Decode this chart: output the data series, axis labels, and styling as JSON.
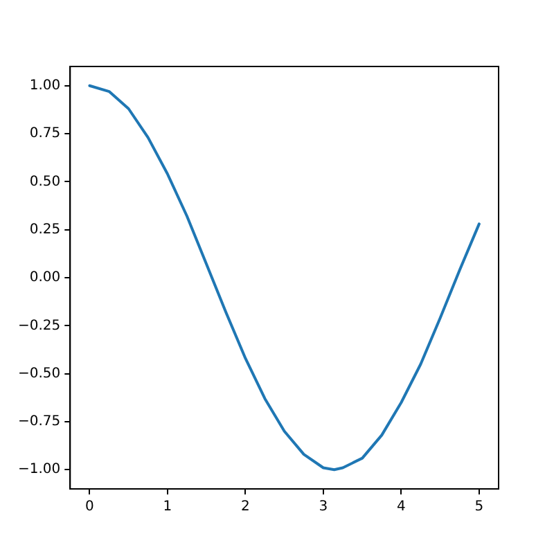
{
  "chart_data": {
    "type": "line",
    "x": [
      0,
      0.25,
      0.5,
      0.75,
      1,
      1.25,
      1.5,
      1.75,
      2,
      2.25,
      2.5,
      2.75,
      3,
      3.14,
      3.25,
      3.5,
      3.75,
      4,
      4.25,
      4.5,
      4.75,
      5
    ],
    "series": [
      {
        "color": "#1f77b4",
        "values": [
          1.0,
          0.97,
          0.88,
          0.73,
          0.54,
          0.32,
          0.07,
          -0.18,
          -0.42,
          -0.63,
          -0.8,
          -0.92,
          -0.99,
          -1.0,
          -0.99,
          -0.94,
          -0.82,
          -0.65,
          -0.45,
          -0.21,
          0.04,
          0.28
        ]
      }
    ],
    "xlim": [
      -0.25,
      5.25
    ],
    "xticks": [
      0,
      1,
      2,
      3,
      4,
      5
    ],
    "ylim": [
      -1.1,
      1.1
    ],
    "yticks": [
      {
        "value": -1,
        "label": "−1.00"
      },
      {
        "value": -0.75,
        "label": "−0.75"
      },
      {
        "value": -0.5,
        "label": "−0.50"
      },
      {
        "value": -0.25,
        "label": "−0.25"
      },
      {
        "value": 0,
        "label": "0.00"
      },
      {
        "value": 0.25,
        "label": "0.25"
      },
      {
        "value": 0.5,
        "label": "0.50"
      },
      {
        "value": 0.75,
        "label": "0.75"
      },
      {
        "value": 1,
        "label": "1.00"
      }
    ],
    "grid": false,
    "legend": false,
    "marker": "none",
    "line_style": "solid"
  }
}
